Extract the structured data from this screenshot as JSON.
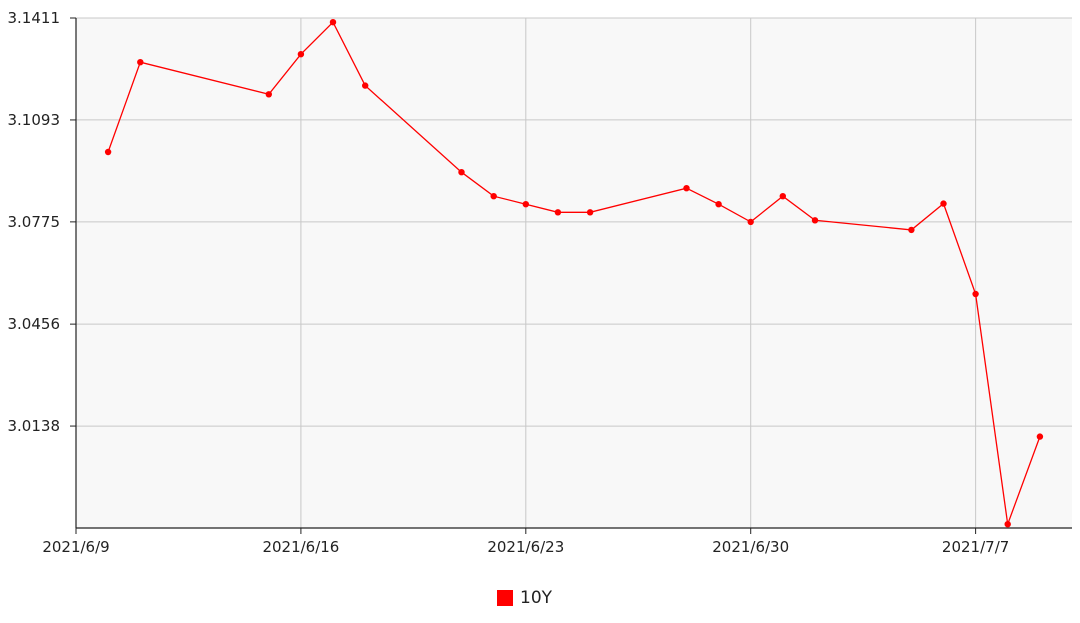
{
  "chart_data": {
    "type": "line",
    "title": "",
    "xlabel": "",
    "ylabel": "",
    "x_ticks": [
      "2021/6/9",
      "2021/6/16",
      "2021/6/23",
      "2021/6/30",
      "2021/7/7"
    ],
    "y_ticks": [
      "3.1411",
      "3.1093",
      "3.0775",
      "3.0456",
      "3.0138"
    ],
    "xlim": [
      "2021-06-09",
      "2021-07-10"
    ],
    "ylim": [
      2.982,
      3.1411
    ],
    "grid": true,
    "legend_position": "bottom-center",
    "series": [
      {
        "name": "10Y",
        "color": "#ff0000",
        "x": [
          "2021-06-10",
          "2021-06-11",
          "2021-06-15",
          "2021-06-16",
          "2021-06-17",
          "2021-06-18",
          "2021-06-21",
          "2021-06-22",
          "2021-06-23",
          "2021-06-24",
          "2021-06-25",
          "2021-06-28",
          "2021-06-29",
          "2021-06-30",
          "2021-07-01",
          "2021-07-02",
          "2021-07-05",
          "2021-07-06",
          "2021-07-07",
          "2021-07-08",
          "2021-07-09"
        ],
        "values": [
          3.0993,
          3.1273,
          3.1173,
          3.1298,
          3.1398,
          3.12,
          3.093,
          3.0855,
          3.083,
          3.0805,
          3.0805,
          3.088,
          3.083,
          3.0775,
          3.0855,
          3.078,
          3.075,
          3.0832,
          3.055,
          2.9832,
          3.0105
        ]
      }
    ]
  },
  "legend": {
    "label": "10Y",
    "color": "#ff0000"
  }
}
